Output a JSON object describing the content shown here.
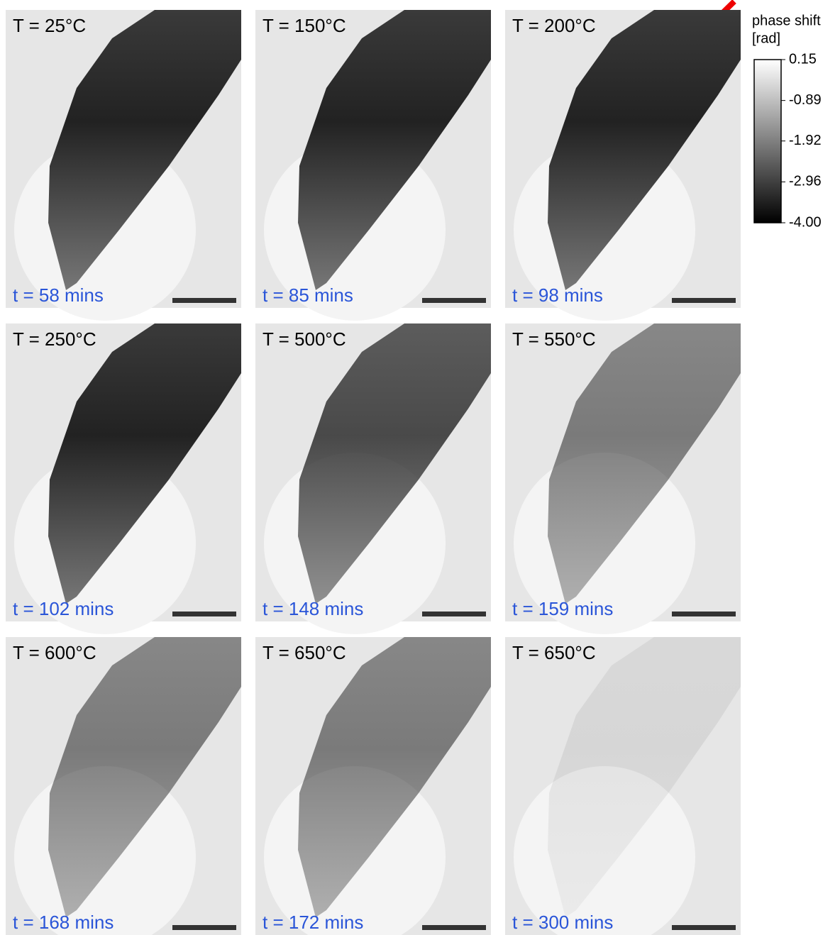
{
  "panels": [
    {
      "temperature": "T = 25°C",
      "time": "t = 58 mins"
    },
    {
      "temperature": "T = 150°C",
      "time": "t = 85 mins"
    },
    {
      "temperature": "T = 200°C",
      "time": "t = 98 mins"
    },
    {
      "temperature": "T = 250°C",
      "time": "t = 102 mins"
    },
    {
      "temperature": "T = 500°C",
      "time": "t = 148 mins"
    },
    {
      "temperature": "T = 550°C",
      "time": "t = 159 mins"
    },
    {
      "temperature": "T = 600°C",
      "time": "t = 168 mins"
    },
    {
      "temperature": "T = 650°C",
      "time": "t = 172 mins"
    },
    {
      "temperature": "T = 650°C",
      "time": "t = 300 mins"
    }
  ],
  "colorbar": {
    "title": "phase shift",
    "unit": "[rad]",
    "lim": [
      -4,
      0.15
    ],
    "ticks": [
      0.15,
      -0.89,
      -1.92,
      -2.96,
      {
        "value": -4,
        "label": "-4.00"
      }
    ]
  }
}
